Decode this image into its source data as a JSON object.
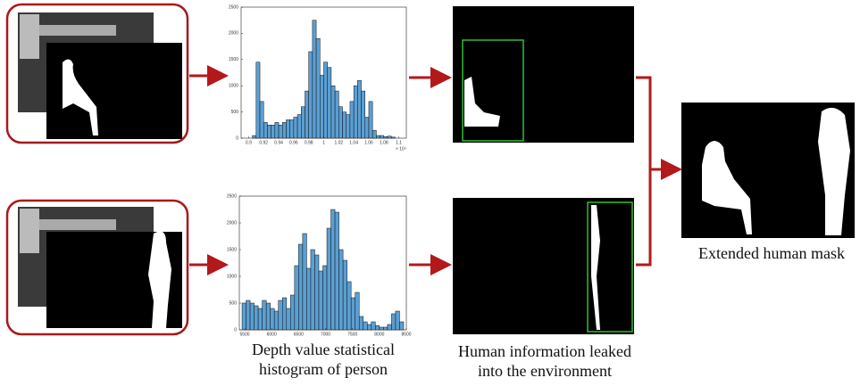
{
  "chart_data": [
    {
      "type": "histogram",
      "color": "#5b9fd3",
      "bins": [
        0.905,
        0.91,
        0.915,
        0.92,
        0.925,
        0.93,
        0.935,
        0.94,
        0.945,
        0.95,
        0.955,
        0.96,
        0.965,
        0.97,
        0.975,
        0.98,
        0.985,
        0.99,
        0.995,
        1.0,
        1.005,
        1.01,
        1.015,
        1.02,
        1.025,
        1.03,
        1.035,
        1.04,
        1.045,
        1.05,
        1.055,
        1.06,
        1.065,
        1.07,
        1.075,
        1.08,
        1.085,
        1.09,
        1.095
      ],
      "values": [
        50,
        1450,
        700,
        300,
        250,
        250,
        300,
        250,
        300,
        350,
        350,
        400,
        450,
        600,
        900,
        1650,
        2250,
        1900,
        1200,
        1450,
        1350,
        1000,
        900,
        600,
        500,
        450,
        700,
        1000,
        1100,
        900,
        400,
        700,
        150,
        50,
        50,
        30,
        40,
        20
      ],
      "xlim": [
        0.89,
        1.11
      ],
      "xticks": [
        0.9,
        0.92,
        0.94,
        0.96,
        0.98,
        1,
        1.02,
        1.04,
        1.06,
        1.08,
        1.1
      ],
      "x_multiplier": "× 10⁴",
      "ylim": [
        0,
        2500
      ],
      "yticks": [
        0,
        500,
        1000,
        1500,
        2000,
        2500
      ]
    },
    {
      "type": "histogram",
      "color": "#5b9fd3",
      "bins": [
        5450,
        5525,
        5600,
        5675,
        5750,
        5825,
        5900,
        5975,
        6050,
        6125,
        6200,
        6275,
        6350,
        6425,
        6500,
        6575,
        6650,
        6725,
        6800,
        6875,
        6950,
        7025,
        7100,
        7175,
        7250,
        7325,
        7400,
        7475,
        7550,
        7625,
        7700,
        7775,
        7850,
        7925,
        8000,
        8075,
        8150,
        8225,
        8300,
        8375,
        8450
      ],
      "values": [
        500,
        550,
        500,
        450,
        400,
        550,
        500,
        400,
        350,
        550,
        600,
        400,
        650,
        1200,
        1600,
        1800,
        1150,
        1500,
        1400,
        1100,
        1200,
        1900,
        2250,
        2200,
        1500,
        1300,
        900,
        600,
        700,
        250,
        150,
        100,
        150,
        80,
        50,
        50,
        100,
        300,
        350,
        150
      ],
      "xlim": [
        5400,
        8500
      ],
      "xticks": [
        5500,
        6000,
        6500,
        7000,
        7500,
        8000,
        8500
      ],
      "ylim": [
        0,
        2500
      ],
      "yticks": [
        0,
        500,
        1000,
        1500,
        2000,
        2500
      ]
    }
  ],
  "captions": {
    "histogram": [
      "Depth value statistical",
      "histogram of person"
    ],
    "leak": [
      "Human information leaked",
      "into the environment"
    ],
    "result": "Extended human mask"
  }
}
